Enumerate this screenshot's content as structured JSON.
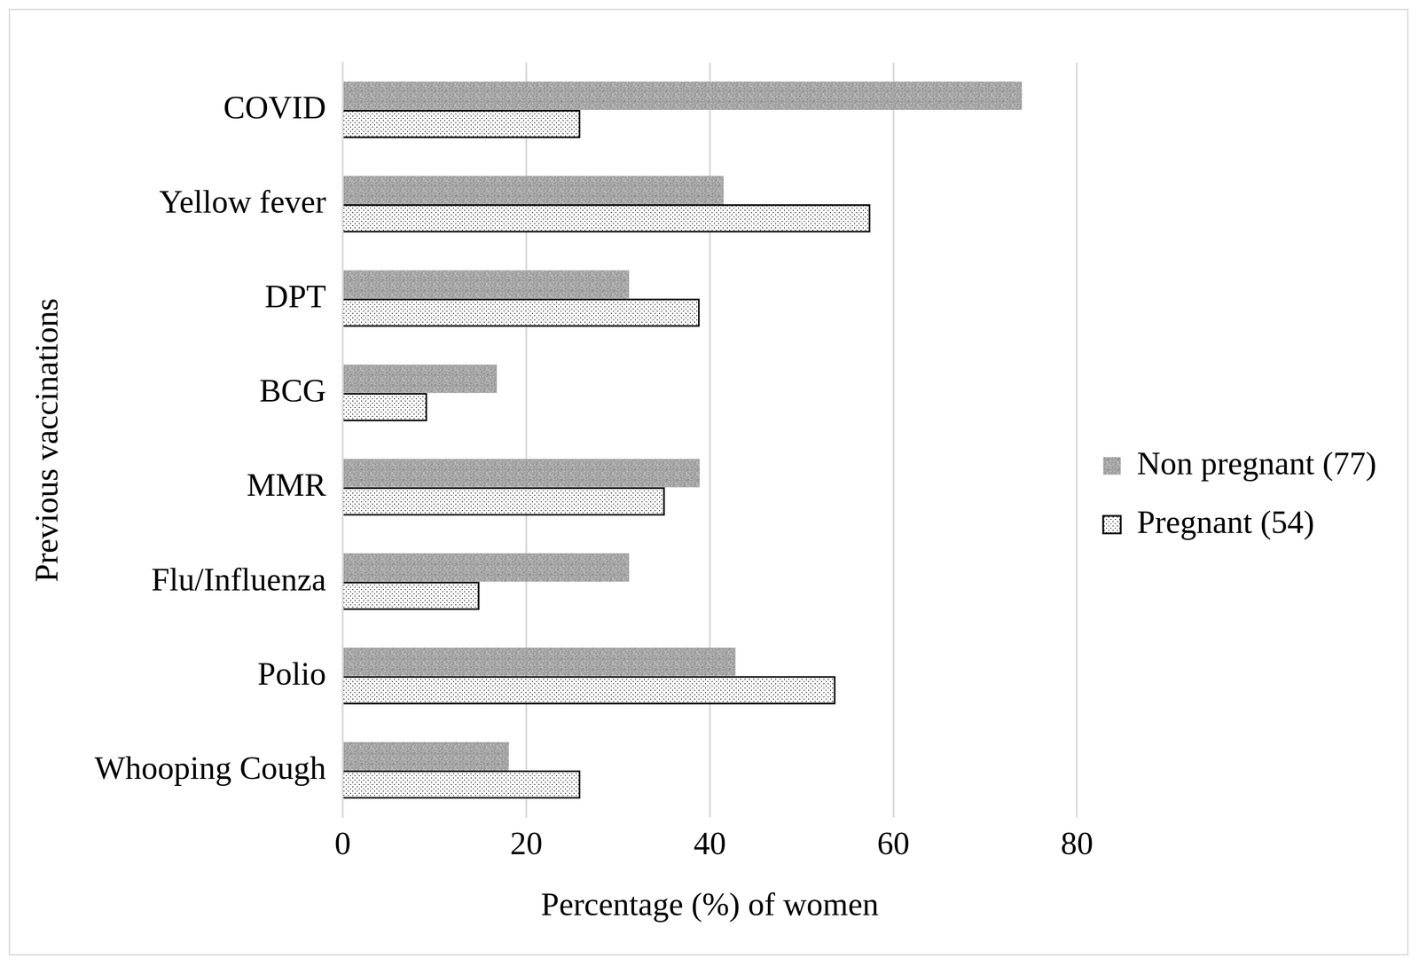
{
  "chart_data": {
    "type": "bar",
    "orientation": "horizontal",
    "x_label": "Percentage (%) of women",
    "y_label": "Previous vaccinations",
    "categories": [
      "COVID",
      "Yellow fever",
      "DPT",
      "BCG",
      "MMR",
      "Flu/Influenza",
      "Polio",
      "Whooping Cough"
    ],
    "series": [
      {
        "name": "Non pregnant (77)",
        "color": "#a6a6a6",
        "values": [
          74.0,
          41.5,
          31.2,
          16.8,
          38.9,
          31.2,
          42.8,
          18.1
        ]
      },
      {
        "name": "Pregnant (54)",
        "color": "#ffffff",
        "values": [
          25.9,
          57.5,
          38.9,
          9.2,
          35.1,
          14.9,
          53.7,
          25.9
        ]
      }
    ],
    "xlim": [
      0,
      80
    ],
    "xticks": [
      0,
      20,
      40,
      60,
      80
    ],
    "grid": true,
    "legend": "right"
  }
}
